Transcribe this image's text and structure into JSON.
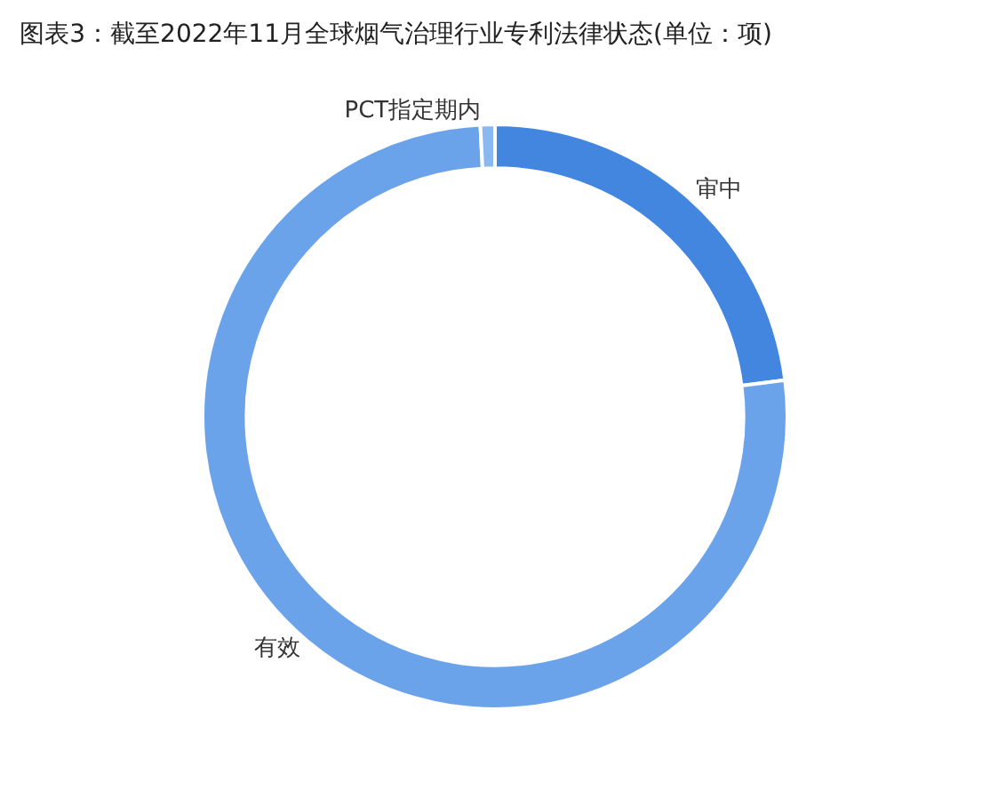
{
  "chart_data": {
    "type": "donut",
    "title": "图表3：截至2022年11月全球烟气治理行业专利法律状态(单位：项)",
    "categories": [
      "审中",
      "有效",
      "PCT指定期内"
    ],
    "values": [
      23,
      76.2,
      0.8
    ],
    "colors": [
      "#4286e0",
      "#6ba3ea",
      "#8ab8f0"
    ],
    "legend": false
  }
}
